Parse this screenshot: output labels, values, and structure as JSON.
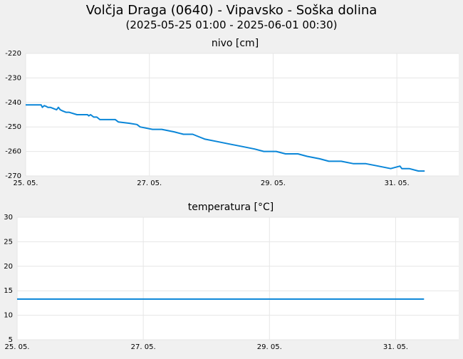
{
  "header": {
    "title": "Volčja Draga (0640) - Vipavsko - Soška dolina",
    "subtitle": "(2025-05-25 01:00 - 2025-06-01 00:30)"
  },
  "colors": {
    "background": "#f0f0f0",
    "plot_background": "#ffffff",
    "grid": "#e6e6e6",
    "line": "#0a86d8"
  },
  "chart_data": [
    {
      "type": "line",
      "title": "nivo [cm]",
      "xlabel": "",
      "ylabel": "",
      "x_ticks": [
        "25. 05.",
        "27. 05.",
        "29. 05.",
        "31. 05."
      ],
      "x_tick_days": [
        0,
        2,
        4,
        6
      ],
      "xlim_days": [
        0,
        7
      ],
      "ylim": [
        -270,
        -220
      ],
      "y_ticks": [
        "-220",
        "-230",
        "-240",
        "-250",
        "-260",
        "-270"
      ],
      "grid": true,
      "series": [
        {
          "x_days": [
            0.0,
            0.25,
            0.27,
            0.3,
            0.33,
            0.36,
            0.4,
            0.5,
            0.53,
            0.56,
            0.6,
            0.65,
            0.7,
            0.83,
            1.0,
            1.02,
            1.05,
            1.1,
            1.15,
            1.2,
            1.45,
            1.5,
            1.67,
            1.8,
            1.85,
            2.05,
            2.2,
            2.4,
            2.55,
            2.7,
            2.8,
            2.9,
            3.1,
            3.3,
            3.5,
            3.7,
            3.85,
            4.05,
            4.2,
            4.4,
            4.55,
            4.75,
            4.9,
            5.1,
            5.3,
            5.5,
            5.7,
            5.9,
            6.05,
            6.08,
            6.12,
            6.2,
            6.35,
            6.45
          ],
          "y": [
            -241,
            -241,
            -242,
            -241.3,
            -241.6,
            -242,
            -242,
            -243,
            -242,
            -243,
            -243.5,
            -244,
            -244,
            -245,
            -245,
            -245.5,
            -245,
            -246,
            -246,
            -247,
            -247,
            -248,
            -248.5,
            -249,
            -250,
            -251,
            -251,
            -252,
            -253,
            -253,
            -254,
            -255,
            -256,
            -257,
            -258,
            -259,
            -260,
            -260,
            -261,
            -261,
            -262,
            -263,
            -264,
            -264,
            -265,
            -265,
            -266,
            -267,
            -266,
            -267,
            -267,
            -267,
            -268,
            -268
          ]
        }
      ]
    },
    {
      "type": "line",
      "title": "temperatura [°C]",
      "xlabel": "",
      "ylabel": "",
      "x_ticks": [
        "25. 05.",
        "27. 05.",
        "29. 05.",
        "31. 05."
      ],
      "x_tick_days": [
        0,
        2,
        4,
        6
      ],
      "xlim_days": [
        0,
        7
      ],
      "ylim": [
        5,
        30
      ],
      "y_ticks": [
        "30",
        "25",
        "20",
        "15",
        "10",
        "5"
      ],
      "grid": true,
      "series": [
        {
          "x_days": [
            0,
            6.45
          ],
          "y": [
            13.3,
            13.3
          ]
        }
      ]
    }
  ]
}
